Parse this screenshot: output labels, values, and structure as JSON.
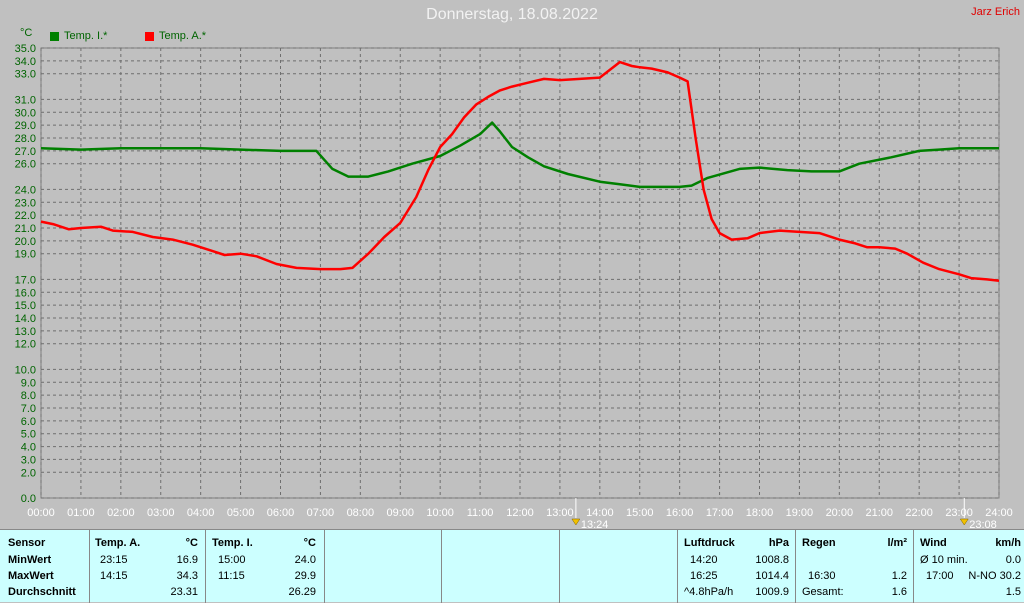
{
  "title": "Donnerstag, 18.08.2022",
  "author": "Jarz Erich",
  "unit_label": "°C",
  "legend": [
    {
      "label": "Temp. I.*",
      "color": "#008000"
    },
    {
      "label": "Temp. A.*",
      "color": "#ff0000"
    }
  ],
  "markers": [
    {
      "label": "13:24",
      "hour": 13.4
    },
    {
      "label": "23:08",
      "hour": 23.13
    }
  ],
  "chart_data": {
    "type": "line",
    "xlabel": "",
    "ylabel": "°C",
    "xlim": [
      0,
      24
    ],
    "ylim": [
      0,
      35
    ],
    "x_ticks": [
      "00:00",
      "01:00",
      "02:00",
      "03:00",
      "04:00",
      "05:00",
      "06:00",
      "07:00",
      "08:00",
      "09:00",
      "10:00",
      "11:00",
      "12:00",
      "13:00",
      "14:00",
      "15:00",
      "16:00",
      "17:00",
      "18:00",
      "19:00",
      "20:00",
      "21:00",
      "22:00",
      "23:00",
      "24:00"
    ],
    "y_ticks": [
      "0.0",
      "2.0",
      "3.0",
      "4.0",
      "5.0",
      "6.0",
      "7.0",
      "8.0",
      "9.0",
      "10.0",
      "12.0",
      "13.0",
      "14.0",
      "15.0",
      "16.0",
      "17.0",
      "19.0",
      "20.0",
      "21.0",
      "22.0",
      "23.0",
      "24.0",
      "26.0",
      "27.0",
      "28.0",
      "29.0",
      "30.0",
      "31.0",
      "33.0",
      "34.0",
      "35.0"
    ],
    "grid": true,
    "series": [
      {
        "name": "Temp. I.*",
        "color": "#008000",
        "points": [
          [
            0,
            27.2
          ],
          [
            1,
            27.1
          ],
          [
            2,
            27.2
          ],
          [
            3,
            27.2
          ],
          [
            4,
            27.2
          ],
          [
            5,
            27.1
          ],
          [
            6,
            27.0
          ],
          [
            6.9,
            27.0
          ],
          [
            7.3,
            25.6
          ],
          [
            7.7,
            25.0
          ],
          [
            8.2,
            25.0
          ],
          [
            8.7,
            25.4
          ],
          [
            9.3,
            26.0
          ],
          [
            10,
            26.6
          ],
          [
            10.5,
            27.4
          ],
          [
            11,
            28.3
          ],
          [
            11.3,
            29.2
          ],
          [
            11.5,
            28.5
          ],
          [
            11.8,
            27.3
          ],
          [
            12.2,
            26.5
          ],
          [
            12.6,
            25.8
          ],
          [
            13.2,
            25.2
          ],
          [
            14,
            24.6
          ],
          [
            14.5,
            24.4
          ],
          [
            15,
            24.2
          ],
          [
            16,
            24.2
          ],
          [
            16.3,
            24.3
          ],
          [
            16.7,
            24.9
          ],
          [
            17.5,
            25.6
          ],
          [
            18,
            25.7
          ],
          [
            18.7,
            25.5
          ],
          [
            19.3,
            25.4
          ],
          [
            20,
            25.4
          ],
          [
            20.5,
            26.0
          ],
          [
            21.3,
            26.5
          ],
          [
            22,
            27.0
          ],
          [
            22.5,
            27.1
          ],
          [
            23,
            27.2
          ],
          [
            23.5,
            27.2
          ],
          [
            24,
            27.2
          ]
        ]
      },
      {
        "name": "Temp. A.*",
        "color": "#ff0000",
        "points": [
          [
            0,
            21.5
          ],
          [
            0.3,
            21.3
          ],
          [
            0.7,
            20.9
          ],
          [
            1,
            21.0
          ],
          [
            1.5,
            21.1
          ],
          [
            1.8,
            20.8
          ],
          [
            2.3,
            20.7
          ],
          [
            2.8,
            20.3
          ],
          [
            3.3,
            20.1
          ],
          [
            3.8,
            19.7
          ],
          [
            4.3,
            19.2
          ],
          [
            4.6,
            18.9
          ],
          [
            5,
            19.0
          ],
          [
            5.4,
            18.8
          ],
          [
            5.9,
            18.2
          ],
          [
            6.4,
            17.9
          ],
          [
            7,
            17.8
          ],
          [
            7.5,
            17.8
          ],
          [
            7.8,
            17.9
          ],
          [
            8.2,
            19.0
          ],
          [
            8.6,
            20.3
          ],
          [
            9,
            21.4
          ],
          [
            9.4,
            23.4
          ],
          [
            9.7,
            25.5
          ],
          [
            10,
            27.3
          ],
          [
            10.3,
            28.3
          ],
          [
            10.6,
            29.6
          ],
          [
            10.9,
            30.6
          ],
          [
            11.2,
            31.2
          ],
          [
            11.5,
            31.7
          ],
          [
            11.8,
            32.0
          ],
          [
            12.2,
            32.3
          ],
          [
            12.6,
            32.6
          ],
          [
            13,
            32.5
          ],
          [
            13.5,
            32.6
          ],
          [
            14,
            32.7
          ],
          [
            14.5,
            33.9
          ],
          [
            14.8,
            33.6
          ],
          [
            15,
            33.5
          ],
          [
            15.3,
            33.4
          ],
          [
            15.7,
            33.1
          ],
          [
            16,
            32.7
          ],
          [
            16.2,
            32.4
          ],
          [
            16.4,
            28.0
          ],
          [
            16.6,
            24.0
          ],
          [
            16.8,
            21.7
          ],
          [
            17,
            20.6
          ],
          [
            17.3,
            20.1
          ],
          [
            17.7,
            20.2
          ],
          [
            18,
            20.6
          ],
          [
            18.5,
            20.8
          ],
          [
            19,
            20.7
          ],
          [
            19.5,
            20.6
          ],
          [
            20,
            20.1
          ],
          [
            20.4,
            19.8
          ],
          [
            20.7,
            19.5
          ],
          [
            21,
            19.5
          ],
          [
            21.4,
            19.4
          ],
          [
            21.7,
            19.0
          ],
          [
            22.1,
            18.3
          ],
          [
            22.5,
            17.8
          ],
          [
            23,
            17.4
          ],
          [
            23.3,
            17.1
          ],
          [
            23.7,
            17.0
          ],
          [
            24,
            16.9
          ]
        ]
      }
    ]
  },
  "panel": {
    "sensor_header": "Sensor",
    "row_labels": [
      "MinWert",
      "MaxWert",
      "Durchschnitt"
    ],
    "temp_a": {
      "header": "Temp. A.",
      "unit": "°C",
      "min_time": "23:15",
      "min_val": "16.9",
      "max_time": "14:15",
      "max_val": "34.3",
      "avg": "23.31"
    },
    "temp_i": {
      "header": "Temp. I.",
      "unit": "°C",
      "min_time": "15:00",
      "min_val": "24.0",
      "max_time": "11:15",
      "max_val": "29.9",
      "avg": "26.29"
    },
    "pressure": {
      "header": "Luftdruck",
      "unit": "hPa",
      "row1_time": "14:20",
      "row1_val": "1008.8",
      "row2_time": "16:25",
      "row2_val": "1014.4",
      "row3_time": "^4.8hPa/h",
      "row3_val": "1009.9"
    },
    "rain": {
      "header": "Regen",
      "unit": "l/m²",
      "row2_time": "16:30",
      "row2_val": "1.2",
      "row3_label": "Gesamt:",
      "row3_val": "1.6"
    },
    "wind": {
      "header": "Wind",
      "unit": "km/h",
      "row1_label": "Ø 10 min.",
      "row1_val": "0.0",
      "row2_time": "17:00",
      "row2_val": "N-NO 30.2",
      "row3_val": "1.5"
    }
  }
}
